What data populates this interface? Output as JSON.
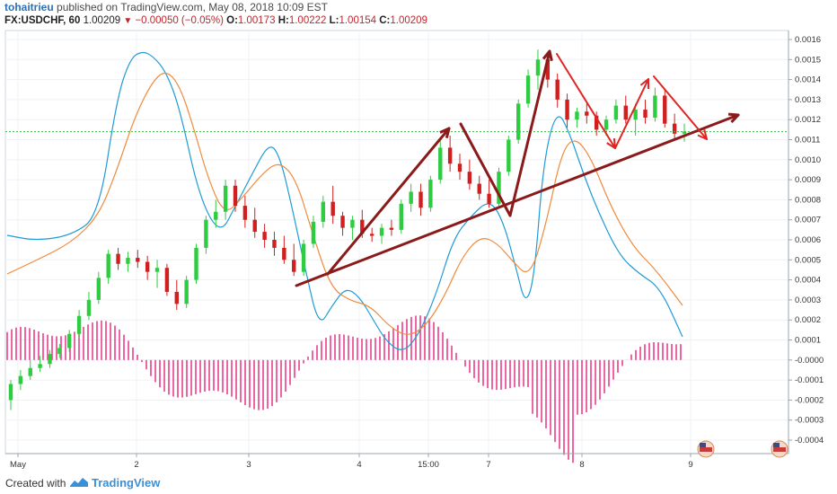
{
  "header": {
    "author": "tohaitrieu",
    "published": "published on TradingView.com, May 08, 2018 10:09 EST",
    "symbol": "FX:USDCHF, 60",
    "last": "1.00209",
    "change": "−0.00050 (−0.05%)",
    "o_label": "O:",
    "o": "1.00173",
    "h_label": "H:",
    "h": "1.00222",
    "l_label": "L:",
    "l": "1.00154",
    "c_label": "C:",
    "c": "1.00209"
  },
  "footer": {
    "created": "Created with",
    "brand": "TradingView"
  },
  "colors": {
    "up": "#2ecc40",
    "down": "#d11f1f",
    "macd": "#1f9bd6",
    "signal": "#f08a3c",
    "hist": "#e8418a",
    "annotation": "#8b1a1a",
    "red_arrow": "#e02424",
    "price_line": "#3cb94a"
  },
  "chart_data": {
    "type": "candlestick",
    "right_axis": {
      "ticks": [
        "0.0016",
        "0.0015",
        "0.0014",
        "0.0013",
        "0.0012",
        "0.0011",
        "0.0010",
        "0.0009",
        "0.0008",
        "0.0007",
        "0.0006",
        "0.0005",
        "0.0004",
        "0.0003",
        "0.0002",
        "0.0001",
        "-0.0000",
        "-0.0001",
        "-0.0002",
        "-0.0003",
        "-0.0004"
      ],
      "range": [
        -0.00045,
        0.00165
      ]
    },
    "x_axis": {
      "labels": [
        "May",
        "2",
        "3",
        "4",
        "15:00",
        "7",
        "8",
        "9"
      ]
    },
    "price_series": [
      [
        -0.0002,
        -0.0001,
        -0.00025,
        -0.00012
      ],
      [
        -0.00012,
        -5e-05,
        -0.00015,
        -8e-05
      ],
      [
        -8e-05,
        0.0,
        -0.0001,
        -4e-05
      ],
      [
        -4e-05,
        2e-05,
        -6e-05,
        -2e-05
      ],
      [
        -2e-05,
        5e-05,
        -4e-05,
        3e-05
      ],
      [
        3e-05,
        8e-05,
        1e-05,
        6e-05
      ],
      [
        6e-05,
        0.00015,
        4e-05,
        0.00013
      ],
      [
        0.00013,
        0.00025,
        0.00011,
        0.00022
      ],
      [
        0.00022,
        0.00034,
        0.0002,
        0.0003
      ],
      [
        0.0003,
        0.00044,
        0.00028,
        0.00041
      ],
      [
        0.00041,
        0.00055,
        0.00038,
        0.00053
      ],
      [
        0.00053,
        0.00056,
        0.00045,
        0.00048
      ],
      [
        0.00048,
        0.00054,
        0.00044,
        0.00051
      ],
      [
        0.00051,
        0.00055,
        0.00046,
        0.00049
      ],
      [
        0.00049,
        0.00052,
        0.0004,
        0.00044
      ],
      [
        0.00044,
        0.0005,
        0.00036,
        0.00046
      ],
      [
        0.00046,
        0.00048,
        0.00032,
        0.00034
      ],
      [
        0.00034,
        0.0004,
        0.00025,
        0.00028
      ],
      [
        0.00028,
        0.00042,
        0.00026,
        0.0004
      ],
      [
        0.0004,
        0.00058,
        0.00038,
        0.00056
      ],
      [
        0.00056,
        0.00072,
        0.00053,
        0.0007
      ],
      [
        0.0007,
        0.0008,
        0.00066,
        0.00074
      ],
      [
        0.00074,
        0.0009,
        0.0007,
        0.00087
      ],
      [
        0.00087,
        0.0009,
        0.00074,
        0.00077
      ],
      [
        0.00077,
        0.00082,
        0.00066,
        0.0007
      ],
      [
        0.0007,
        0.00076,
        0.00061,
        0.00064
      ],
      [
        0.00064,
        0.00068,
        0.00056,
        0.0006
      ],
      [
        0.0006,
        0.00064,
        0.00052,
        0.00056
      ],
      [
        0.00056,
        0.00062,
        0.00048,
        0.0005
      ],
      [
        0.0005,
        0.00058,
        0.00042,
        0.00044
      ],
      [
        0.00044,
        0.0006,
        0.00042,
        0.00058
      ],
      [
        0.00058,
        0.00072,
        0.00056,
        0.00069
      ],
      [
        0.00069,
        0.00082,
        0.00066,
        0.00079
      ],
      [
        0.00079,
        0.00087,
        0.00068,
        0.00072
      ],
      [
        0.00072,
        0.00074,
        0.00062,
        0.00066
      ],
      [
        0.00066,
        0.00072,
        0.0006,
        0.0007
      ],
      [
        0.0007,
        0.00075,
        0.00061,
        0.00063
      ],
      [
        0.00063,
        0.00066,
        0.00059,
        0.00062
      ],
      [
        0.00062,
        0.00068,
        0.00058,
        0.00066
      ],
      [
        0.00066,
        0.0007,
        0.00062,
        0.00065
      ],
      [
        0.00065,
        0.0008,
        0.00063,
        0.00078
      ],
      [
        0.00078,
        0.00088,
        0.00074,
        0.00084
      ],
      [
        0.00084,
        0.00088,
        0.00072,
        0.00076
      ],
      [
        0.00076,
        0.00092,
        0.00074,
        0.0009
      ],
      [
        0.0009,
        0.0011,
        0.00088,
        0.00106
      ],
      [
        0.00106,
        0.00112,
        0.00094,
        0.00098
      ],
      [
        0.00098,
        0.00103,
        0.0009,
        0.00094
      ],
      [
        0.00094,
        0.001,
        0.00085,
        0.00088
      ],
      [
        0.00088,
        0.00092,
        0.0008,
        0.00083
      ],
      [
        0.00083,
        0.0009,
        0.00076,
        0.00078
      ],
      [
        0.00078,
        0.00096,
        0.00077,
        0.00094
      ],
      [
        0.00094,
        0.00112,
        0.00092,
        0.0011
      ],
      [
        0.0011,
        0.0013,
        0.00108,
        0.00128
      ],
      [
        0.00128,
        0.00145,
        0.00126,
        0.00142
      ],
      [
        0.00142,
        0.00155,
        0.00135,
        0.0015
      ],
      [
        0.0015,
        0.00153,
        0.00136,
        0.0014
      ],
      [
        0.0014,
        0.00143,
        0.00126,
        0.0013
      ],
      [
        0.0013,
        0.00133,
        0.00116,
        0.0012
      ],
      [
        0.0012,
        0.00126,
        0.00116,
        0.00124
      ],
      [
        0.00124,
        0.00128,
        0.00118,
        0.00122
      ],
      [
        0.00122,
        0.00124,
        0.00112,
        0.00115
      ],
      [
        0.00115,
        0.00122,
        0.00112,
        0.0012
      ],
      [
        0.0012,
        0.0013,
        0.00118,
        0.00127
      ],
      [
        0.00127,
        0.00132,
        0.00118,
        0.0012
      ],
      [
        0.0012,
        0.00128,
        0.00112,
        0.00125
      ],
      [
        0.00125,
        0.0013,
        0.00118,
        0.00121
      ],
      [
        0.00121,
        0.00136,
        0.00119,
        0.00132
      ],
      [
        0.00132,
        0.00135,
        0.00116,
        0.00118
      ],
      [
        0.00118,
        0.00123,
        0.0011,
        0.00113
      ],
      [
        0.00113,
        0.00118,
        0.00109,
        0.00114
      ]
    ],
    "annotations": [
      "trendline",
      "up-arrows",
      "red-zigzag-arrows"
    ]
  }
}
